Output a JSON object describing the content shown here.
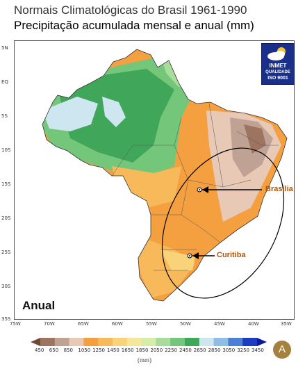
{
  "title_line1": "Normais Climatológicas do Brasil 1961-1990",
  "title_line2": "Precipitação acumulada mensal e anual (mm)",
  "logo": {
    "line1": "INMET",
    "line2": "QUALIDADE",
    "line3": "ISO 9001"
  },
  "period_label": "Anual",
  "lat_labels": [
    "5N",
    "EQ",
    "5S",
    "10S",
    "15S",
    "20S",
    "25S",
    "30S",
    "35S"
  ],
  "lon_labels": [
    "75W",
    "70W",
    "65W",
    "60W",
    "55W",
    "50W",
    "45W",
    "40W",
    "35W"
  ],
  "cities": [
    {
      "name": "Brasília",
      "color": "#b3520b"
    },
    {
      "name": "Curitiba",
      "color": "#b3520b"
    }
  ],
  "legend": {
    "unit": "(mm)",
    "labels": [
      "450",
      "650",
      "850",
      "1050",
      "1250",
      "1450",
      "1650",
      "1850",
      "2050",
      "2250",
      "2450",
      "2650",
      "2850",
      "3050",
      "3250",
      "3450"
    ],
    "colors": [
      "#6e4a34",
      "#9c7460",
      "#c0a294",
      "#e7c9b6",
      "#f5a040",
      "#f7b95a",
      "#f9d37a",
      "#f5e69a",
      "#d7ecaa",
      "#a9dc9b",
      "#74c77a",
      "#3fa65a",
      "#cde6ef",
      "#8fbde3",
      "#4c7fd6",
      "#1d3cc0",
      "#0a1a9a"
    ]
  },
  "badge": "A"
}
